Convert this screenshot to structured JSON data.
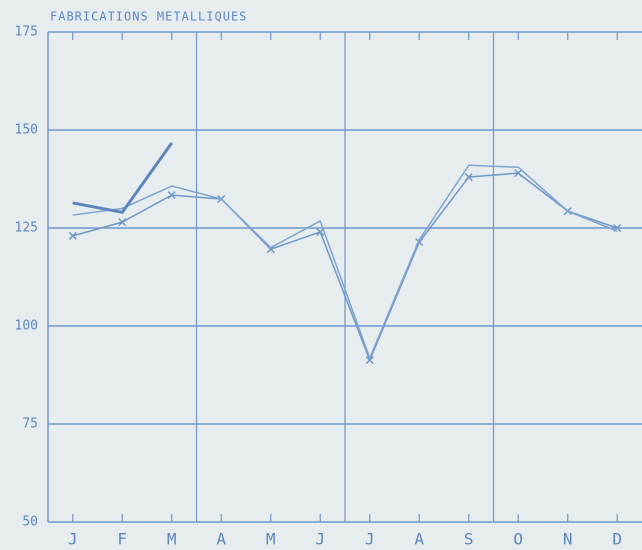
{
  "chart_data": {
    "type": "line",
    "title": "FABRICATIONS METALLIQUES",
    "categories": [
      "J",
      "F",
      "M",
      "A",
      "M",
      "J",
      "J",
      "A",
      "S",
      "O",
      "N",
      "D"
    ],
    "series": [
      {
        "color": "#6f97c8",
        "marker": "x",
        "width": 1.5,
        "values": [
          123,
          126.5,
          133.4,
          132.4,
          119.6,
          124,
          91.3,
          121.4,
          138,
          139,
          129.3,
          125
        ]
      },
      {
        "color": "#7ea3cf",
        "marker": null,
        "width": 1.5,
        "values": [
          128.3,
          130,
          135.7,
          132.4,
          120,
          126.8,
          91.8,
          122,
          141,
          140.5,
          129.3,
          124.2
        ]
      },
      {
        "color": "#5b86bd",
        "marker": null,
        "width": 3,
        "values": [
          131.4,
          129,
          146.7,
          null,
          null,
          null,
          null,
          null,
          null,
          null,
          null,
          null
        ]
      }
    ],
    "ylim": [
      50,
      175
    ],
    "yticks": [
      50,
      75,
      100,
      125,
      150,
      175
    ],
    "grid": true
  }
}
